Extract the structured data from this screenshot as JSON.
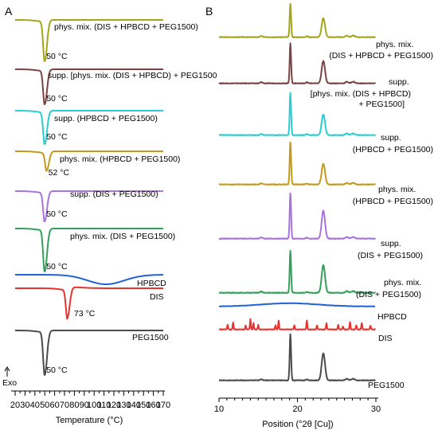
{
  "panels": {
    "a": {
      "letter": "A"
    },
    "b": {
      "letter": "B"
    }
  },
  "chart_data": [
    {
      "type": "line",
      "panel": "A",
      "subtype": "DSC thermograms (stacked, no y scale)",
      "xlabel": "Temperature (°C)",
      "xlim": [
        20,
        170
      ],
      "xticks": [
        20,
        30,
        40,
        50,
        60,
        70,
        80,
        90,
        100,
        110,
        120,
        130,
        140,
        150,
        160,
        170
      ],
      "exo_label": "Exo",
      "grid": false,
      "series": [
        {
          "name": "phys. mix. (DIS + HPBCD + PEG1500)",
          "color": "#a5a51b",
          "peak_label": "50 °C",
          "peak_x": 50
        },
        {
          "name": "supp. [phys. mix. (DIS + HPBCD) + PEG1500",
          "color": "#7a4444",
          "peak_label": "50 °C",
          "peak_x": 50
        },
        {
          "name": "supp. (HPBCD + PEG1500)",
          "color": "#2bcdd0",
          "peak_label": "50 °C",
          "peak_x": 50
        },
        {
          "name": "phys. mix. (HPBCD + PEG1500)",
          "color": "#c49a1a",
          "peak_label": "52 °C",
          "peak_x": 52
        },
        {
          "name": "supp. (DIS + PEG1500)",
          "color": "#a873dc",
          "peak_label": "50 °C",
          "peak_x": 50
        },
        {
          "name": "phys. mix. (DIS + PEG1500)",
          "color": "#33a05a",
          "peak_label": "50 °C",
          "peak_x": 50
        },
        {
          "name": "HPBCD",
          "color": "#1f63d4",
          "peak_label": "",
          "peak_x": 112
        },
        {
          "name": "DIS",
          "color": "#e8322f",
          "peak_label": "73 °C",
          "peak_x": 73
        },
        {
          "name": "PEG1500",
          "color": "#4b4b4b",
          "peak_label": "50 °C",
          "peak_x": 50
        }
      ]
    },
    {
      "type": "line",
      "panel": "B",
      "subtype": "XRD patterns (stacked, no y scale)",
      "xlabel": "Position (°2θ [Cu])",
      "xlim": [
        10,
        30
      ],
      "xticks": [
        10,
        20,
        30
      ],
      "grid": false,
      "series": [
        {
          "name": "phys. mix.\n(DIS + HPBCD + PEG1500)",
          "color": "#a5a51b"
        },
        {
          "name": "supp.\n[phys. mix. (DIS + HPBCD)\n+ PEG1500]",
          "color": "#7a4444"
        },
        {
          "name": "supp.\n(HPBCD + PEG1500)",
          "color": "#2bcdd0"
        },
        {
          "name": "phys. mix.\n(HPBCD + PEG1500)",
          "color": "#c49a1a"
        },
        {
          "name": "supp.\n(DIS + PEG1500)",
          "color": "#a873dc"
        },
        {
          "name": "phys. mix.\n(DIS + PEG1500)",
          "color": "#33a05a"
        },
        {
          "name": "HPBCD",
          "color": "#1f63d4"
        },
        {
          "name": "DIS",
          "color": "#e8322f"
        },
        {
          "name": "PEG1500",
          "color": "#4b4b4b"
        }
      ]
    }
  ]
}
